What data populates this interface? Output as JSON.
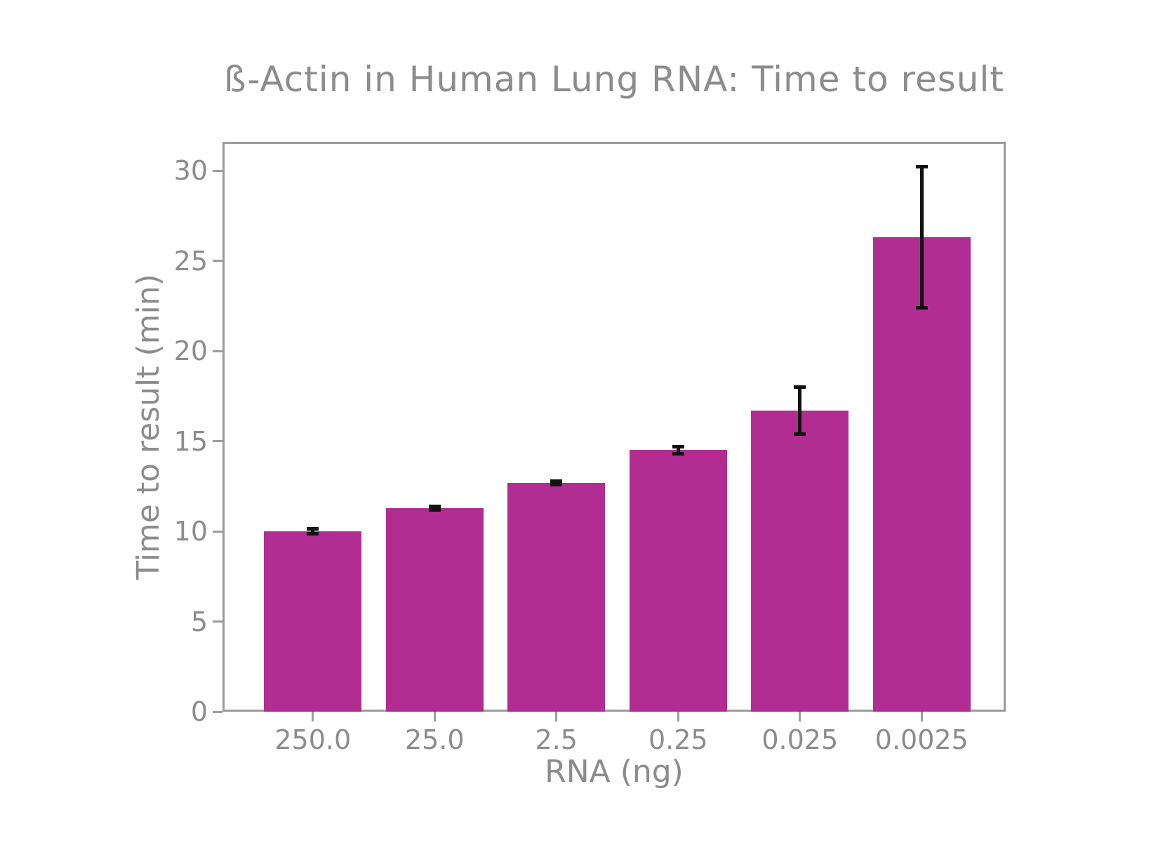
{
  "chart_data": {
    "type": "bar",
    "title": "ß-Actin in Human Lung RNA: Time to result",
    "xlabel": "RNA (ng)",
    "ylabel": "Time to result (min)",
    "categories": [
      "250.0",
      "25.0",
      "2.5",
      "0.25",
      "0.025",
      "0.0025"
    ],
    "values": [
      10.0,
      11.3,
      12.7,
      14.5,
      16.7,
      26.3
    ],
    "error_bars": [
      0.15,
      0.1,
      0.1,
      0.2,
      1.3,
      3.9
    ],
    "yticks": [
      0,
      5,
      10,
      15,
      20,
      25,
      30
    ],
    "ylim": [
      0,
      31.6
    ],
    "grid": false,
    "legend": null,
    "colors": {
      "bar": "#b22d92",
      "error": "#111111",
      "text": "#8c8c8c",
      "spine": "#9c9c9c",
      "background": "#ffffff"
    }
  }
}
